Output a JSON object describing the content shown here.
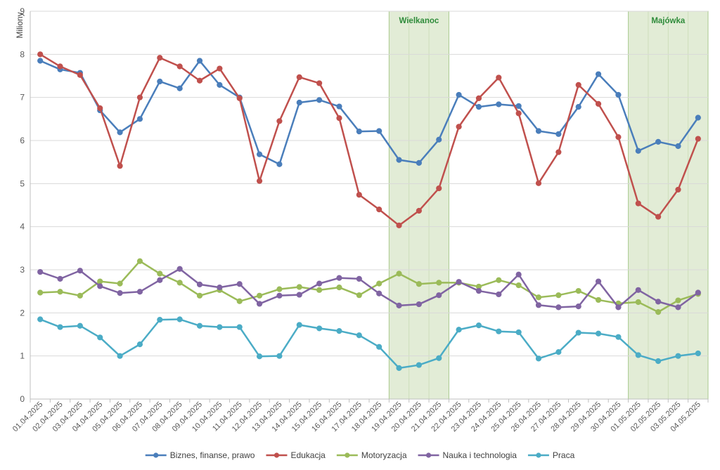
{
  "chart_data": {
    "type": "line",
    "ylabel": "Miliony",
    "ylim": [
      0,
      9
    ],
    "yticks": [
      "0",
      "1",
      "2",
      "3",
      "4",
      "5",
      "6",
      "7",
      "8",
      "9"
    ],
    "grid": "horizontal",
    "legend_position": "bottom",
    "categories": [
      "01.04.2025",
      "02.04.2025",
      "03.04.2025",
      "04.04.2025",
      "05.04.2025",
      "06.04.2025",
      "07.04.2025",
      "08.04.2025",
      "09.04.2025",
      "10.04.2025",
      "11.04.2025",
      "12.04.2025",
      "13.04.2025",
      "14.04.2025",
      "15.04.2025",
      "16.04.2025",
      "17.04.2025",
      "18.04.2025",
      "19.04.2025",
      "20.04.2025",
      "21.04.2025",
      "22.04.2025",
      "23.04.2025",
      "24.04.2025",
      "25.04.2025",
      "26.04.2025",
      "27.04.2025",
      "28.04.2025",
      "29.04.2025",
      "30.04.2025",
      "01.05.2025",
      "02.05.2025",
      "03.05.2025",
      "04.05.2025"
    ],
    "highlights": [
      {
        "label": "Wielkanoc",
        "from": "19.04.2025",
        "to": "21.04.2025",
        "color": "#e2ecd6",
        "border": "#a9c98e"
      },
      {
        "label": "Majówka",
        "from": "01.05.2025",
        "to": "04.05.2025",
        "color": "#e2ecd6",
        "border": "#a9c98e"
      }
    ],
    "series": [
      {
        "name": "Biznes, finanse, prawo",
        "color": "#4a7ebb",
        "values": [
          7.85,
          7.65,
          7.57,
          6.7,
          6.19,
          6.5,
          7.37,
          7.21,
          7.85,
          7.29,
          7.0,
          5.68,
          5.45,
          6.88,
          6.94,
          6.79,
          6.21,
          6.22,
          5.55,
          5.48,
          6.02,
          7.06,
          6.78,
          6.84,
          6.8,
          6.22,
          6.15,
          6.78,
          7.54,
          7.06,
          5.76,
          5.97,
          5.87,
          6.53
        ]
      },
      {
        "name": "Edukacja",
        "color": "#c0504d",
        "values": [
          8.0,
          7.72,
          7.52,
          6.75,
          5.41,
          7.0,
          7.92,
          7.72,
          7.39,
          7.67,
          6.98,
          5.06,
          6.45,
          7.47,
          7.33,
          6.52,
          4.74,
          4.4,
          4.03,
          4.37,
          4.89,
          6.32,
          6.98,
          7.46,
          6.63,
          5.01,
          5.73,
          7.29,
          6.85,
          6.08,
          4.54,
          4.23,
          4.86,
          6.04
        ]
      },
      {
        "name": "Motoryzacja",
        "color": "#9bbb59",
        "values": [
          2.47,
          2.49,
          2.4,
          2.73,
          2.68,
          3.2,
          2.91,
          2.7,
          2.4,
          2.53,
          2.27,
          2.4,
          2.55,
          2.6,
          2.53,
          2.59,
          2.41,
          2.68,
          2.91,
          2.67,
          2.7,
          2.7,
          2.61,
          2.76,
          2.64,
          2.36,
          2.41,
          2.51,
          2.3,
          2.22,
          2.25,
          2.02,
          2.29,
          2.44
        ]
      },
      {
        "name": "Nauka i technologia",
        "color": "#8064a2",
        "values": [
          2.95,
          2.79,
          2.98,
          2.62,
          2.46,
          2.49,
          2.76,
          3.02,
          2.66,
          2.59,
          2.67,
          2.21,
          2.4,
          2.42,
          2.68,
          2.81,
          2.79,
          2.45,
          2.17,
          2.2,
          2.41,
          2.72,
          2.51,
          2.43,
          2.89,
          2.18,
          2.13,
          2.15,
          2.73,
          2.13,
          2.53,
          2.26,
          2.13,
          2.47
        ]
      },
      {
        "name": "Praca",
        "color": "#4bacc6",
        "values": [
          1.85,
          1.67,
          1.7,
          1.43,
          1.0,
          1.27,
          1.84,
          1.85,
          1.7,
          1.67,
          1.67,
          0.99,
          1.0,
          1.72,
          1.64,
          1.58,
          1.48,
          1.21,
          0.72,
          0.79,
          0.95,
          1.61,
          1.71,
          1.57,
          1.55,
          0.94,
          1.09,
          1.54,
          1.52,
          1.44,
          1.02,
          0.88,
          1.0,
          1.06
        ]
      }
    ]
  }
}
